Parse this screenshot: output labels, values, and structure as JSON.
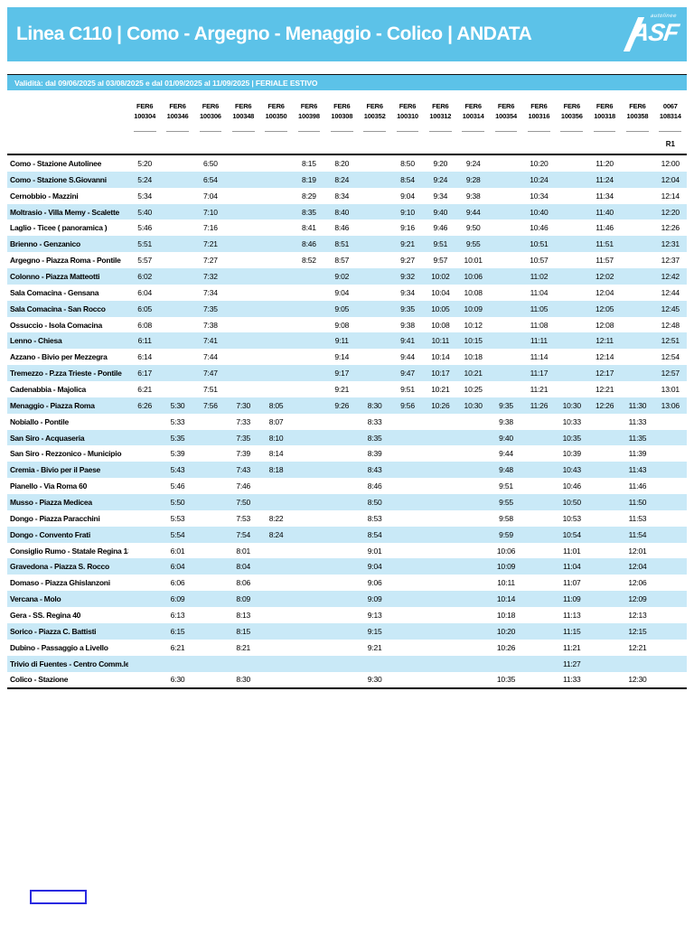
{
  "colors": {
    "band_blue": "#5CC2E8",
    "stripe_blue": "#C9E9F7",
    "link_box_border": "#2A2AE0",
    "text_black": "#000000",
    "text_white": "#ffffff"
  },
  "header": {
    "title": "Linea C110 | Como - Argegno - Menaggio - Colico | ANDATA",
    "logo": {
      "text": "ASF",
      "subtext": "autolinee"
    }
  },
  "validity": {
    "text": "Validità: dal 09/06/2025 al 03/08/2025 e dal 01/09/2025 al 11/09/2025 | FERIALE ESTIVO"
  },
  "timetable": {
    "columns": [
      {
        "l1": "FER6",
        "l2": "100304"
      },
      {
        "l1": "FER6",
        "l2": "100346"
      },
      {
        "l1": "FER6",
        "l2": "100306"
      },
      {
        "l1": "FER6",
        "l2": "100348"
      },
      {
        "l1": "FER6",
        "l2": "100350"
      },
      {
        "l1": "FER6",
        "l2": "100398"
      },
      {
        "l1": "FER6",
        "l2": "100308"
      },
      {
        "l1": "FER6",
        "l2": "100352"
      },
      {
        "l1": "FER6",
        "l2": "100310"
      },
      {
        "l1": "FER6",
        "l2": "100312"
      },
      {
        "l1": "FER6",
        "l2": "100314"
      },
      {
        "l1": "FER6",
        "l2": "100354"
      },
      {
        "l1": "FER6",
        "l2": "100316"
      },
      {
        "l1": "FER6",
        "l2": "100356"
      },
      {
        "l1": "FER6",
        "l2": "100318"
      },
      {
        "l1": "FER6",
        "l2": "100358"
      },
      {
        "l1": "0067",
        "l2": "108314"
      }
    ],
    "note_row": {
      "label": "R1",
      "column_index": 16
    },
    "rows": [
      {
        "stop": "Como - Stazione Autolinee",
        "times": [
          "5:20",
          "",
          "6:50",
          "",
          "",
          "8:15",
          "8:20",
          "",
          "8:50",
          "9:20",
          "9:24",
          "",
          "10:20",
          "",
          "11:20",
          "",
          "12:00"
        ]
      },
      {
        "stop": "Como - Stazione S.Giovanni",
        "times": [
          "5:24",
          "",
          "6:54",
          "",
          "",
          "8:19",
          "8:24",
          "",
          "8:54",
          "9:24",
          "9:28",
          "",
          "10:24",
          "",
          "11:24",
          "",
          "12:04"
        ]
      },
      {
        "stop": "Cernobbio - Mazzini",
        "times": [
          "5:34",
          "",
          "7:04",
          "",
          "",
          "8:29",
          "8:34",
          "",
          "9:04",
          "9:34",
          "9:38",
          "",
          "10:34",
          "",
          "11:34",
          "",
          "12:14"
        ]
      },
      {
        "stop": "Moltrasio - Villa Memy - Scalette",
        "times": [
          "5:40",
          "",
          "7:10",
          "",
          "",
          "8:35",
          "8:40",
          "",
          "9:10",
          "9:40",
          "9:44",
          "",
          "10:40",
          "",
          "11:40",
          "",
          "12:20"
        ]
      },
      {
        "stop": "Laglio - Ticee ( panoramica )",
        "times": [
          "5:46",
          "",
          "7:16",
          "",
          "",
          "8:41",
          "8:46",
          "",
          "9:16",
          "9:46",
          "9:50",
          "",
          "10:46",
          "",
          "11:46",
          "",
          "12:26"
        ]
      },
      {
        "stop": "Brienno - Genzanico",
        "times": [
          "5:51",
          "",
          "7:21",
          "",
          "",
          "8:46",
          "8:51",
          "",
          "9:21",
          "9:51",
          "9:55",
          "",
          "10:51",
          "",
          "11:51",
          "",
          "12:31"
        ]
      },
      {
        "stop": "Argegno - Piazza Roma - Pontile",
        "times": [
          "5:57",
          "",
          "7:27",
          "",
          "",
          "8:52",
          "8:57",
          "",
          "9:27",
          "9:57",
          "10:01",
          "",
          "10:57",
          "",
          "11:57",
          "",
          "12:37"
        ]
      },
      {
        "stop": "Colonno - Piazza Matteotti",
        "times": [
          "6:02",
          "",
          "7:32",
          "",
          "",
          "",
          "9:02",
          "",
          "9:32",
          "10:02",
          "10:06",
          "",
          "11:02",
          "",
          "12:02",
          "",
          "12:42"
        ]
      },
      {
        "stop": "Sala Comacina - Gensana",
        "times": [
          "6:04",
          "",
          "7:34",
          "",
          "",
          "",
          "9:04",
          "",
          "9:34",
          "10:04",
          "10:08",
          "",
          "11:04",
          "",
          "12:04",
          "",
          "12:44"
        ]
      },
      {
        "stop": "Sala Comacina - San Rocco",
        "times": [
          "6:05",
          "",
          "7:35",
          "",
          "",
          "",
          "9:05",
          "",
          "9:35",
          "10:05",
          "10:09",
          "",
          "11:05",
          "",
          "12:05",
          "",
          "12:45"
        ]
      },
      {
        "stop": "Ossuccio - Isola Comacina",
        "times": [
          "6:08",
          "",
          "7:38",
          "",
          "",
          "",
          "9:08",
          "",
          "9:38",
          "10:08",
          "10:12",
          "",
          "11:08",
          "",
          "12:08",
          "",
          "12:48"
        ]
      },
      {
        "stop": "Lenno - Chiesa",
        "times": [
          "6:11",
          "",
          "7:41",
          "",
          "",
          "",
          "9:11",
          "",
          "9:41",
          "10:11",
          "10:15",
          "",
          "11:11",
          "",
          "12:11",
          "",
          "12:51"
        ]
      },
      {
        "stop": "Azzano - Bivio per Mezzegra",
        "times": [
          "6:14",
          "",
          "7:44",
          "",
          "",
          "",
          "9:14",
          "",
          "9:44",
          "10:14",
          "10:18",
          "",
          "11:14",
          "",
          "12:14",
          "",
          "12:54"
        ]
      },
      {
        "stop": "Tremezzo - P.zza Trieste - Pontile",
        "times": [
          "6:17",
          "",
          "7:47",
          "",
          "",
          "",
          "9:17",
          "",
          "9:47",
          "10:17",
          "10:21",
          "",
          "11:17",
          "",
          "12:17",
          "",
          "12:57"
        ]
      },
      {
        "stop": "Cadenabbia - Majolica",
        "times": [
          "6:21",
          "",
          "7:51",
          "",
          "",
          "",
          "9:21",
          "",
          "9:51",
          "10:21",
          "10:25",
          "",
          "11:21",
          "",
          "12:21",
          "",
          "13:01"
        ]
      },
      {
        "stop": "Menaggio - Piazza Roma",
        "times": [
          "6:26",
          "5:30",
          "7:56",
          "7:30",
          "8:05",
          "",
          "9:26",
          "8:30",
          "9:56",
          "10:26",
          "10:30",
          "9:35",
          "11:26",
          "10:30",
          "12:26",
          "11:30",
          "13:06"
        ]
      },
      {
        "stop": "Nobiallo - Pontile",
        "times": [
          "",
          "5:33",
          "",
          "7:33",
          "8:07",
          "",
          "",
          "8:33",
          "",
          "",
          "",
          "9:38",
          "",
          "10:33",
          "",
          "11:33",
          ""
        ]
      },
      {
        "stop": "San Siro - Acquaseria",
        "times": [
          "",
          "5:35",
          "",
          "7:35",
          "8:10",
          "",
          "",
          "8:35",
          "",
          "",
          "",
          "9:40",
          "",
          "10:35",
          "",
          "11:35",
          ""
        ]
      },
      {
        "stop": "San Siro - Rezzonico - Municipio",
        "times": [
          "",
          "5:39",
          "",
          "7:39",
          "8:14",
          "",
          "",
          "8:39",
          "",
          "",
          "",
          "9:44",
          "",
          "10:39",
          "",
          "11:39",
          ""
        ]
      },
      {
        "stop": "Cremia - Bivio per il Paese",
        "times": [
          "",
          "5:43",
          "",
          "7:43",
          "8:18",
          "",
          "",
          "8:43",
          "",
          "",
          "",
          "9:48",
          "",
          "10:43",
          "",
          "11:43",
          ""
        ]
      },
      {
        "stop": "Pianello - Via Roma 60",
        "times": [
          "",
          "5:46",
          "",
          "7:46",
          "",
          "",
          "",
          "8:46",
          "",
          "",
          "",
          "9:51",
          "",
          "10:46",
          "",
          "11:46",
          ""
        ]
      },
      {
        "stop": "Musso - Piazza Medicea",
        "times": [
          "",
          "5:50",
          "",
          "7:50",
          "",
          "",
          "",
          "8:50",
          "",
          "",
          "",
          "9:55",
          "",
          "10:50",
          "",
          "11:50",
          ""
        ]
      },
      {
        "stop": "Dongo - Piazza Paracchini",
        "times": [
          "",
          "5:53",
          "",
          "7:53",
          "8:22",
          "",
          "",
          "8:53",
          "",
          "",
          "",
          "9:58",
          "",
          "10:53",
          "",
          "11:53",
          ""
        ]
      },
      {
        "stop": "Dongo - Convento Frati",
        "times": [
          "",
          "5:54",
          "",
          "7:54",
          "8:24",
          "",
          "",
          "8:54",
          "",
          "",
          "",
          "9:59",
          "",
          "10:54",
          "",
          "11:54",
          ""
        ]
      },
      {
        "stop": "Consiglio Rumo - Statale Regina 13",
        "times": [
          "",
          "6:01",
          "",
          "8:01",
          "",
          "",
          "",
          "9:01",
          "",
          "",
          "",
          "10:06",
          "",
          "11:01",
          "",
          "12:01",
          ""
        ]
      },
      {
        "stop": "Gravedona - Piazza S. Rocco",
        "times": [
          "",
          "6:04",
          "",
          "8:04",
          "",
          "",
          "",
          "9:04",
          "",
          "",
          "",
          "10:09",
          "",
          "11:04",
          "",
          "12:04",
          ""
        ]
      },
      {
        "stop": "Domaso - Piazza Ghislanzoni",
        "times": [
          "",
          "6:06",
          "",
          "8:06",
          "",
          "",
          "",
          "9:06",
          "",
          "",
          "",
          "10:11",
          "",
          "11:07",
          "",
          "12:06",
          ""
        ]
      },
      {
        "stop": "Vercana - Molo",
        "times": [
          "",
          "6:09",
          "",
          "8:09",
          "",
          "",
          "",
          "9:09",
          "",
          "",
          "",
          "10:14",
          "",
          "11:09",
          "",
          "12:09",
          ""
        ]
      },
      {
        "stop": "Gera - SS. Regina 40",
        "times": [
          "",
          "6:13",
          "",
          "8:13",
          "",
          "",
          "",
          "9:13",
          "",
          "",
          "",
          "10:18",
          "",
          "11:13",
          "",
          "12:13",
          ""
        ]
      },
      {
        "stop": "Sorico - Piazza C. Battisti",
        "times": [
          "",
          "6:15",
          "",
          "8:15",
          "",
          "",
          "",
          "9:15",
          "",
          "",
          "",
          "10:20",
          "",
          "11:15",
          "",
          "12:15",
          ""
        ]
      },
      {
        "stop": "Dubino - Passaggio a Livello",
        "times": [
          "",
          "6:21",
          "",
          "8:21",
          "",
          "",
          "",
          "9:21",
          "",
          "",
          "",
          "10:26",
          "",
          "11:21",
          "",
          "12:21",
          ""
        ]
      },
      {
        "stop": "Trivio di Fuentes - Centro Comm.le",
        "times": [
          "",
          "",
          "",
          "",
          "",
          "",
          "",
          "",
          "",
          "",
          "",
          "",
          "",
          "11:27",
          "",
          "",
          ""
        ]
      },
      {
        "stop": "Colico - Stazione",
        "times": [
          "",
          "6:30",
          "",
          "8:30",
          "",
          "",
          "",
          "9:30",
          "",
          "",
          "",
          "10:35",
          "",
          "11:33",
          "",
          "12:30",
          ""
        ]
      }
    ]
  }
}
